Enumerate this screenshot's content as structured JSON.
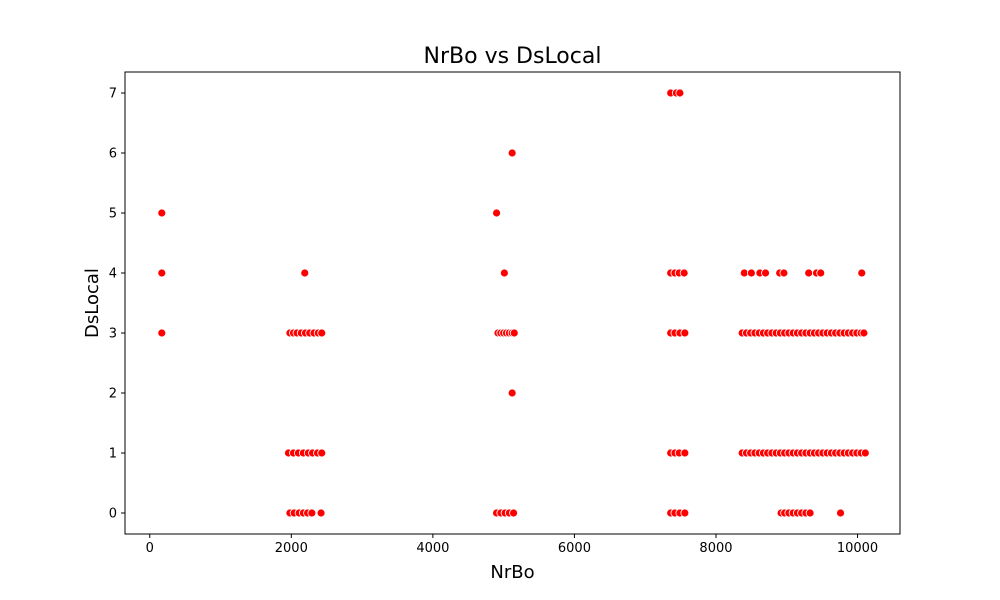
{
  "chart_data": {
    "type": "scatter",
    "title": "NrBo vs DsLocal",
    "xlabel": "NrBo",
    "ylabel": "DsLocal",
    "xlim": [
      -350,
      10600
    ],
    "ylim": [
      -0.35,
      7.35
    ],
    "xticks": [
      0,
      2000,
      4000,
      6000,
      8000,
      10000
    ],
    "yticks": [
      0,
      1,
      2,
      3,
      4,
      5,
      6,
      7
    ],
    "grid": false,
    "legend": "none",
    "color": "#ff0000",
    "points": [
      {
        "x": 170,
        "y": 5
      },
      {
        "x": 170,
        "y": 4
      },
      {
        "x": 170,
        "y": 3
      },
      {
        "x": 2190,
        "y": 4
      },
      {
        "x": 1980,
        "y": 3
      },
      {
        "x": 2030,
        "y": 3
      },
      {
        "x": 2080,
        "y": 3
      },
      {
        "x": 2140,
        "y": 3
      },
      {
        "x": 2200,
        "y": 3
      },
      {
        "x": 2260,
        "y": 3
      },
      {
        "x": 2320,
        "y": 3
      },
      {
        "x": 2380,
        "y": 3
      },
      {
        "x": 2430,
        "y": 3
      },
      {
        "x": 1960,
        "y": 1
      },
      {
        "x": 2030,
        "y": 1
      },
      {
        "x": 2100,
        "y": 1
      },
      {
        "x": 2170,
        "y": 1
      },
      {
        "x": 2240,
        "y": 1
      },
      {
        "x": 2300,
        "y": 1
      },
      {
        "x": 2370,
        "y": 1
      },
      {
        "x": 2430,
        "y": 1
      },
      {
        "x": 1980,
        "y": 0
      },
      {
        "x": 2040,
        "y": 0
      },
      {
        "x": 2110,
        "y": 0
      },
      {
        "x": 2170,
        "y": 0
      },
      {
        "x": 2230,
        "y": 0
      },
      {
        "x": 2290,
        "y": 0
      },
      {
        "x": 2420,
        "y": 0
      },
      {
        "x": 5120,
        "y": 6
      },
      {
        "x": 4900,
        "y": 5
      },
      {
        "x": 5010,
        "y": 4
      },
      {
        "x": 4920,
        "y": 3
      },
      {
        "x": 4960,
        "y": 3
      },
      {
        "x": 5000,
        "y": 3
      },
      {
        "x": 5040,
        "y": 3
      },
      {
        "x": 5080,
        "y": 3
      },
      {
        "x": 5120,
        "y": 3
      },
      {
        "x": 5150,
        "y": 3
      },
      {
        "x": 5120,
        "y": 2
      },
      {
        "x": 4900,
        "y": 0
      },
      {
        "x": 4960,
        "y": 0
      },
      {
        "x": 5020,
        "y": 0
      },
      {
        "x": 5080,
        "y": 0
      },
      {
        "x": 5140,
        "y": 0
      },
      {
        "x": 7360,
        "y": 7
      },
      {
        "x": 7440,
        "y": 7
      },
      {
        "x": 7490,
        "y": 7
      },
      {
        "x": 7360,
        "y": 4
      },
      {
        "x": 7420,
        "y": 4
      },
      {
        "x": 7480,
        "y": 4
      },
      {
        "x": 7550,
        "y": 4
      },
      {
        "x": 7360,
        "y": 3
      },
      {
        "x": 7420,
        "y": 3
      },
      {
        "x": 7490,
        "y": 3
      },
      {
        "x": 7560,
        "y": 3
      },
      {
        "x": 7360,
        "y": 1
      },
      {
        "x": 7420,
        "y": 1
      },
      {
        "x": 7480,
        "y": 1
      },
      {
        "x": 7560,
        "y": 1
      },
      {
        "x": 7360,
        "y": 0
      },
      {
        "x": 7420,
        "y": 0
      },
      {
        "x": 7490,
        "y": 0
      },
      {
        "x": 7560,
        "y": 0
      },
      {
        "x": 8400,
        "y": 4
      },
      {
        "x": 8500,
        "y": 4
      },
      {
        "x": 8620,
        "y": 4
      },
      {
        "x": 8700,
        "y": 4
      },
      {
        "x": 8900,
        "y": 4
      },
      {
        "x": 8960,
        "y": 4
      },
      {
        "x": 9310,
        "y": 4
      },
      {
        "x": 9420,
        "y": 4
      },
      {
        "x": 9480,
        "y": 4
      },
      {
        "x": 10060,
        "y": 4
      },
      {
        "x": 8370,
        "y": 3
      },
      {
        "x": 8430,
        "y": 3
      },
      {
        "x": 8490,
        "y": 3
      },
      {
        "x": 8550,
        "y": 3
      },
      {
        "x": 8610,
        "y": 3
      },
      {
        "x": 8670,
        "y": 3
      },
      {
        "x": 8730,
        "y": 3
      },
      {
        "x": 8790,
        "y": 3
      },
      {
        "x": 8850,
        "y": 3
      },
      {
        "x": 8910,
        "y": 3
      },
      {
        "x": 8970,
        "y": 3
      },
      {
        "x": 9030,
        "y": 3
      },
      {
        "x": 9090,
        "y": 3
      },
      {
        "x": 9150,
        "y": 3
      },
      {
        "x": 9210,
        "y": 3
      },
      {
        "x": 9270,
        "y": 3
      },
      {
        "x": 9330,
        "y": 3
      },
      {
        "x": 9390,
        "y": 3
      },
      {
        "x": 9450,
        "y": 3
      },
      {
        "x": 9510,
        "y": 3
      },
      {
        "x": 9570,
        "y": 3
      },
      {
        "x": 9630,
        "y": 3
      },
      {
        "x": 9690,
        "y": 3
      },
      {
        "x": 9750,
        "y": 3
      },
      {
        "x": 9810,
        "y": 3
      },
      {
        "x": 9870,
        "y": 3
      },
      {
        "x": 9930,
        "y": 3
      },
      {
        "x": 9990,
        "y": 3
      },
      {
        "x": 10050,
        "y": 3
      },
      {
        "x": 10090,
        "y": 3
      },
      {
        "x": 8370,
        "y": 1
      },
      {
        "x": 8430,
        "y": 1
      },
      {
        "x": 8490,
        "y": 1
      },
      {
        "x": 8550,
        "y": 1
      },
      {
        "x": 8610,
        "y": 1
      },
      {
        "x": 8670,
        "y": 1
      },
      {
        "x": 8730,
        "y": 1
      },
      {
        "x": 8790,
        "y": 1
      },
      {
        "x": 8850,
        "y": 1
      },
      {
        "x": 8910,
        "y": 1
      },
      {
        "x": 8970,
        "y": 1
      },
      {
        "x": 9030,
        "y": 1
      },
      {
        "x": 9090,
        "y": 1
      },
      {
        "x": 9150,
        "y": 1
      },
      {
        "x": 9210,
        "y": 1
      },
      {
        "x": 9270,
        "y": 1
      },
      {
        "x": 9330,
        "y": 1
      },
      {
        "x": 9390,
        "y": 1
      },
      {
        "x": 9450,
        "y": 1
      },
      {
        "x": 9510,
        "y": 1
      },
      {
        "x": 9570,
        "y": 1
      },
      {
        "x": 9630,
        "y": 1
      },
      {
        "x": 9690,
        "y": 1
      },
      {
        "x": 9750,
        "y": 1
      },
      {
        "x": 9810,
        "y": 1
      },
      {
        "x": 9870,
        "y": 1
      },
      {
        "x": 9930,
        "y": 1
      },
      {
        "x": 9990,
        "y": 1
      },
      {
        "x": 10050,
        "y": 1
      },
      {
        "x": 10110,
        "y": 1
      },
      {
        "x": 8920,
        "y": 0
      },
      {
        "x": 8970,
        "y": 0
      },
      {
        "x": 9030,
        "y": 0
      },
      {
        "x": 9090,
        "y": 0
      },
      {
        "x": 9150,
        "y": 0
      },
      {
        "x": 9210,
        "y": 0
      },
      {
        "x": 9270,
        "y": 0
      },
      {
        "x": 9330,
        "y": 0
      },
      {
        "x": 9760,
        "y": 0
      }
    ]
  }
}
